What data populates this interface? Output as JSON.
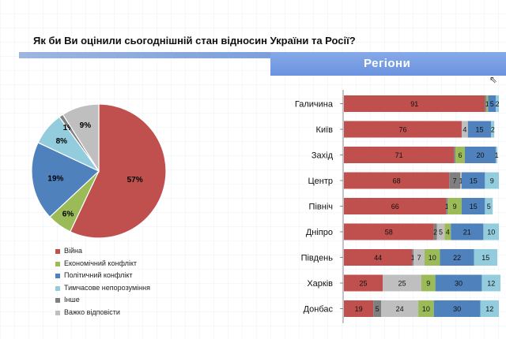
{
  "title": "Як би Ви оцінили сьогоднішній стан відносин України та Росії?",
  "banner": "Регіони",
  "colors": [
    "#c0504d",
    "#9bbb59",
    "#4f81bd",
    "#93cddd",
    "#7f7f7f",
    "#bfbfbf"
  ],
  "chart_data": [
    {
      "type": "pie",
      "labels": [
        "Війна",
        "Економічний конфлікт",
        "Політичний конфлікт",
        "Тимчасове непорозуміння",
        "Інше",
        "Важко відповісти"
      ],
      "values": [
        57,
        6,
        19,
        8,
        1,
        9
      ],
      "value_labels": [
        "57%",
        "6%",
        "19%",
        "8%",
        "1%",
        "9%"
      ],
      "legend": "bottom"
    },
    {
      "type": "bar",
      "orientation": "horizontal",
      "stacked": true,
      "categories": [
        "Галичина",
        "Київ",
        "Захід",
        "Центр",
        "Північ",
        "Дніпро",
        "Південь",
        "Харків",
        "Донбас"
      ],
      "series": [
        {
          "name": "Війна",
          "values": [
            91,
            76,
            71,
            68,
            66,
            58,
            44,
            25,
            19
          ]
        },
        {
          "name": "Інше",
          "values": [
            1,
            0,
            1,
            7,
            1,
            2,
            1,
            0,
            5
          ]
        },
        {
          "name": "Важко відповісти",
          "values": [
            0,
            4,
            0,
            1,
            0,
            5,
            7,
            25,
            24
          ]
        },
        {
          "name": "Економічний конфлікт",
          "values": [
            1,
            0,
            6,
            0,
            9,
            4,
            10,
            9,
            10
          ]
        },
        {
          "name": "Політичний конфлікт",
          "values": [
            5,
            15,
            20,
            15,
            15,
            21,
            22,
            30,
            30
          ]
        },
        {
          "name": "Тимчасове непорозуміння",
          "values": [
            2,
            2,
            1,
            9,
            5,
            10,
            15,
            12,
            12
          ]
        }
      ],
      "data_labels": [
        [
          "91",
          "",
          "",
          "1",
          "5",
          "2"
        ],
        [
          "76",
          "",
          "4",
          "",
          "15",
          "2"
        ],
        [
          "71",
          "",
          "",
          "6",
          "20",
          "1"
        ],
        [
          "68",
          "7",
          "1",
          "",
          "15",
          "9"
        ],
        [
          "66",
          "1",
          "",
          "9",
          "15",
          "5"
        ],
        [
          "58",
          "2",
          "5",
          "4",
          "21",
          "10"
        ],
        [
          "44",
          "1",
          "7",
          "10",
          "22",
          "15"
        ],
        [
          "25",
          "",
          "25",
          "9",
          "30",
          "12"
        ],
        [
          "19",
          "5",
          "24",
          "10",
          "30",
          "12"
        ]
      ],
      "xlim": [
        0,
        100
      ]
    }
  ]
}
